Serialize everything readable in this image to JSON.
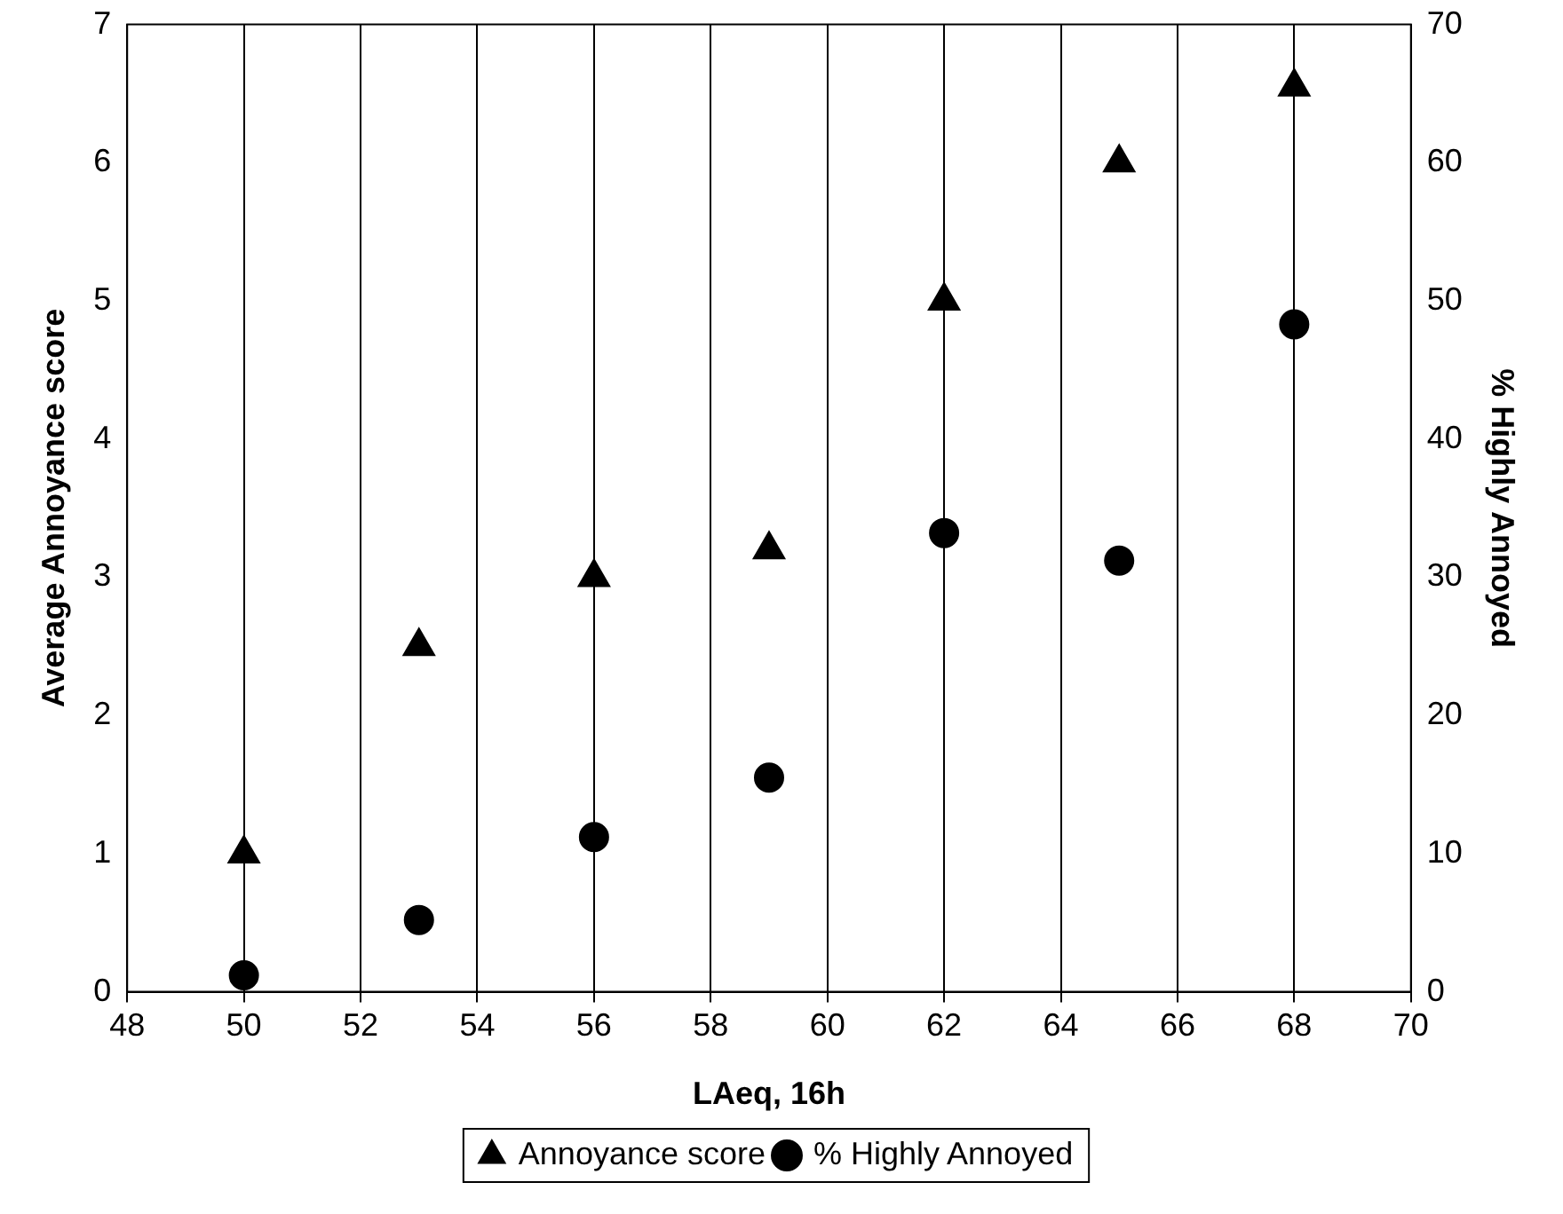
{
  "chart_data": {
    "type": "scatter",
    "xlabel": "LAeq, 16h",
    "ylabel": "Average Annoyance score",
    "y2label": "% Highly Annoyed",
    "x": [
      50,
      53,
      56,
      59,
      62,
      65,
      68
    ],
    "series": [
      {
        "name": "Annoyance score",
        "color": "#000000",
        "marker": "triangle",
        "values": [
          1.0,
          2.5,
          3.0,
          3.2,
          5.0,
          6.0,
          6.55
        ]
      },
      {
        "name": "% Highly Annoyed",
        "color": "#000000",
        "marker": "circle",
        "axis": "y2",
        "values": [
          1.2,
          5.2,
          11.2,
          15.5,
          33.2,
          31.2,
          48.3
        ]
      }
    ],
    "xlim": [
      48,
      70
    ],
    "xticks": [
      48,
      50,
      52,
      54,
      56,
      58,
      60,
      62,
      64,
      66,
      68,
      70
    ],
    "ylim": [
      0,
      7
    ],
    "yticks": [
      0,
      1,
      2,
      3,
      4,
      5,
      6,
      7
    ],
    "y2lim": [
      0,
      70
    ],
    "y2ticks": [
      0,
      10,
      20,
      30,
      40,
      50,
      60,
      70
    ],
    "grid": "x",
    "legend": "bottom"
  }
}
